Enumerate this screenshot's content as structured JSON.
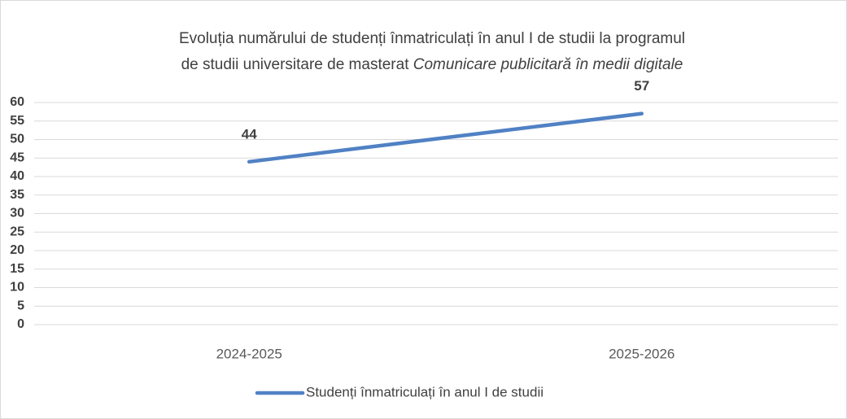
{
  "chart_data": {
    "type": "line",
    "title_lines": [
      "Evoluția numărului de studenți înmatriculați în anul I de studii la programul",
      "de studii universitare de masterat"
    ],
    "title_italic": "Comunicare publicitară în medii digitale",
    "categories": [
      "2024-2025",
      "2025-2026"
    ],
    "series": [
      {
        "name": "Studenți înmatriculați în anul I de studii",
        "color": "#5081c4",
        "values": [
          44,
          57
        ]
      }
    ],
    "ylim": [
      0,
      60
    ],
    "yticks": [
      0,
      5,
      10,
      15,
      20,
      25,
      30,
      35,
      40,
      45,
      50,
      55,
      60
    ],
    "grid": true,
    "legend": "bottom"
  }
}
